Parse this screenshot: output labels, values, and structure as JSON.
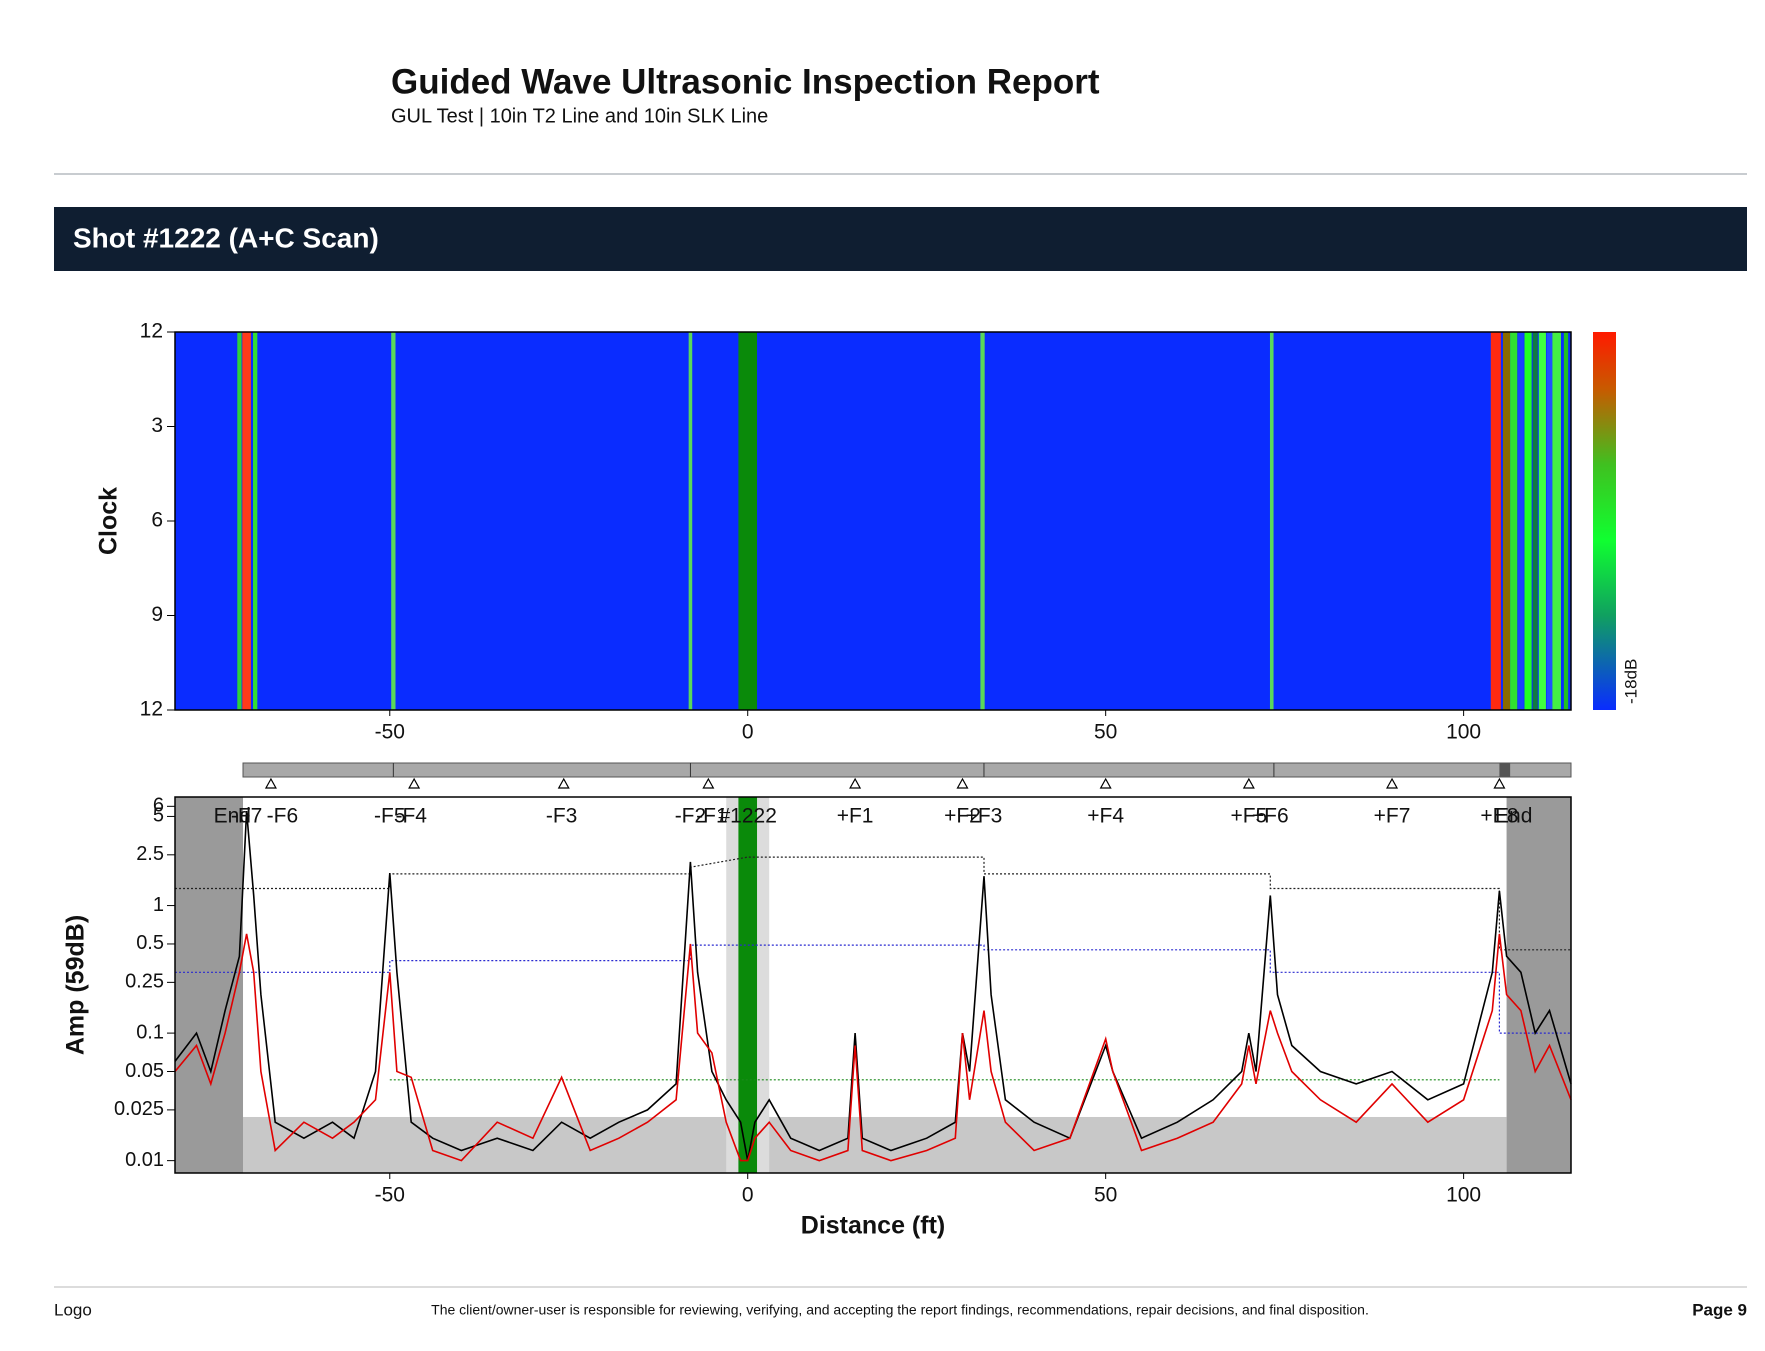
{
  "header": {
    "title": "Guided Wave Ultrasonic Inspection Report",
    "subtitle": "GUL Test | 10in T2 Line and 10in SLK Line"
  },
  "section": {
    "title": "Shot #1222 (A+C Scan)"
  },
  "cscan": {
    "type": "heatmap",
    "ylabel": "Clock",
    "xlim": [
      -80,
      115
    ],
    "xticks": [
      -50,
      0,
      50,
      100
    ],
    "ylim": [
      0,
      12
    ],
    "inverted": true,
    "yticks": [
      {
        "value": 0,
        "label": "12"
      },
      {
        "value": 3,
        "label": "3"
      },
      {
        "value": 6,
        "label": "6"
      },
      {
        "value": 9,
        "label": "9"
      },
      {
        "value": 12,
        "label": "12"
      }
    ],
    "background": "#0a2cff",
    "colorbar_label": "-18dB",
    "stripes": [
      {
        "x": -71,
        "w": 0.6,
        "color": "#2fd13a"
      },
      {
        "x": -70,
        "w": 1.2,
        "color": "#ff3b1a"
      },
      {
        "x": -68.8,
        "w": 0.6,
        "color": "#33dd33"
      },
      {
        "x": -49.5,
        "w": 0.6,
        "color": "#5ad85a"
      },
      {
        "x": -8,
        "w": 0.5,
        "color": "#5ad85a"
      },
      {
        "x": 0,
        "w": 2.6,
        "color": "#0a8a0a"
      },
      {
        "x": 32.8,
        "w": 0.6,
        "color": "#5ad85a"
      },
      {
        "x": 73.2,
        "w": 0.5,
        "color": "#5ad85a"
      },
      {
        "x": 104.5,
        "w": 1.4,
        "color": "#ff2a10"
      },
      {
        "x": 106,
        "w": 1,
        "color": "#8a6a00"
      },
      {
        "x": 107,
        "w": 1,
        "color": "#30e030"
      },
      {
        "x": 108,
        "w": 0.8,
        "color": "#1a40ff"
      },
      {
        "x": 109,
        "w": 1,
        "color": "#22ff22"
      },
      {
        "x": 110,
        "w": 0.7,
        "color": "#107a40"
      },
      {
        "x": 111,
        "w": 1,
        "color": "#40ff40"
      },
      {
        "x": 112,
        "w": 0.8,
        "color": "#2050ff"
      },
      {
        "x": 113,
        "w": 1.2,
        "color": "#44ee44"
      },
      {
        "x": 114.3,
        "w": 0.6,
        "color": "#22c022"
      }
    ]
  },
  "feature_bar": {
    "start": -70.5,
    "dividers": [
      -49.5,
      -8,
      33,
      73.5
    ],
    "dark": [
      105,
      106.5
    ],
    "markers": [
      -66.6,
      -46.6,
      -25.7,
      -5.5,
      15,
      30,
      50,
      70,
      90,
      105
    ]
  },
  "ascan": {
    "type": "line",
    "ylabel": "Amp (59dB)",
    "xlabel": "Distance (ft)",
    "xlim": [
      -80,
      115
    ],
    "xticks": [
      -50,
      0,
      50,
      100
    ],
    "ylim": [
      0.008,
      7.1
    ],
    "log_y": true,
    "yticks": [
      0.01,
      0.025,
      0.05,
      0.1,
      0.25,
      0.5,
      1,
      2.5,
      5,
      6
    ],
    "features": [
      {
        "label": "End",
        "x": -72
      },
      {
        "label": "-F7",
        "x": -70
      },
      {
        "label": "-F6",
        "x": -65
      },
      {
        "label": "-F5",
        "x": -50
      },
      {
        "label": "-F4",
        "x": -47
      },
      {
        "label": "-F3",
        "x": -26
      },
      {
        "label": "-F2",
        "x": -8
      },
      {
        "label": "-F1",
        "x": -5
      },
      {
        "label": "#1222",
        "x": 0
      },
      {
        "label": "+F1",
        "x": 15
      },
      {
        "label": "+F2",
        "x": 30
      },
      {
        "label": "+F3",
        "x": 33
      },
      {
        "label": "+F4",
        "x": 50
      },
      {
        "label": "+F5",
        "x": 70
      },
      {
        "label": "+F6",
        "x": 73
      },
      {
        "label": "+F7",
        "x": 90
      },
      {
        "label": "+E8",
        "x": 105
      },
      {
        "label": "End",
        "x": 107
      }
    ],
    "regions": [
      {
        "x0": -80,
        "x1": -70.5,
        "y0": 0.008,
        "y1": 7.1,
        "color": "#9a9a9a"
      },
      {
        "x0": 106,
        "x1": 115,
        "y0": 0.008,
        "y1": 7.1,
        "color": "#9a9a9a"
      },
      {
        "x0": -70.5,
        "x1": 106,
        "y0": 0.008,
        "y1": 0.022,
        "color": "#c8c8c8"
      },
      {
        "x0": -3,
        "x1": 3,
        "y0": 0.008,
        "y1": 7.1,
        "color": "#dcdcdc"
      },
      {
        "x0": -1.3,
        "x1": 1.3,
        "y0": 0.008,
        "y1": 7.1,
        "color": "#0a8a0a"
      }
    ],
    "reference_lines": [
      {
        "color": "#222",
        "x": [
          -80,
          -50,
          -50,
          -8,
          -8,
          0,
          33,
          33,
          73,
          73,
          105,
          105,
          115
        ],
        "values": [
          1.36,
          1.36,
          1.77,
          1.77,
          2.0,
          2.4,
          2.4,
          1.77,
          1.77,
          1.36,
          1.36,
          0.45,
          0.45
        ]
      },
      {
        "color": "#2a2ad0",
        "x": [
          -80,
          -50,
          -50,
          -8,
          -8,
          33,
          33,
          73,
          73,
          105,
          105,
          115
        ],
        "values": [
          0.3,
          0.3,
          0.37,
          0.37,
          0.49,
          0.49,
          0.45,
          0.45,
          0.3,
          0.3,
          0.1,
          0.1
        ]
      },
      {
        "color": "#1a8a1a",
        "x": [
          -50,
          105
        ],
        "values": [
          0.043,
          0.043
        ]
      }
    ],
    "series": [
      {
        "color": "#000000",
        "x": [
          -80,
          -77,
          -75,
          -73,
          -71,
          -70,
          -69,
          -68,
          -66,
          -62,
          -58,
          -55,
          -52,
          -50,
          -49,
          -47,
          -44,
          -40,
          -35,
          -30,
          -26,
          -22,
          -18,
          -14,
          -10,
          -8,
          -7,
          -5,
          -3,
          -1,
          0,
          1,
          3,
          6,
          10,
          14,
          15,
          16,
          20,
          25,
          29,
          30,
          31,
          33,
          34,
          36,
          40,
          45,
          50,
          51,
          55,
          60,
          65,
          69,
          70,
          71,
          73,
          74,
          76,
          80,
          85,
          90,
          95,
          100,
          104,
          105,
          106,
          108,
          110,
          112,
          115
        ],
        "values": [
          0.06,
          0.1,
          0.05,
          0.15,
          0.4,
          5.5,
          1.2,
          0.2,
          0.02,
          0.015,
          0.02,
          0.015,
          0.05,
          1.8,
          0.3,
          0.02,
          0.015,
          0.012,
          0.015,
          0.012,
          0.02,
          0.015,
          0.02,
          0.025,
          0.04,
          2.2,
          0.3,
          0.05,
          0.03,
          0.02,
          0.01,
          0.02,
          0.03,
          0.015,
          0.012,
          0.015,
          0.1,
          0.015,
          0.012,
          0.015,
          0.02,
          0.1,
          0.05,
          1.7,
          0.2,
          0.03,
          0.02,
          0.015,
          0.08,
          0.05,
          0.015,
          0.02,
          0.03,
          0.05,
          0.1,
          0.05,
          1.2,
          0.2,
          0.08,
          0.05,
          0.04,
          0.05,
          0.03,
          0.04,
          0.3,
          1.3,
          0.4,
          0.3,
          0.1,
          0.15,
          0.04
        ]
      },
      {
        "color": "#e00000",
        "x": [
          -80,
          -77,
          -75,
          -73,
          -71,
          -70,
          -69,
          -68,
          -66,
          -62,
          -58,
          -55,
          -52,
          -50,
          -49,
          -47,
          -44,
          -40,
          -35,
          -30,
          -26,
          -22,
          -18,
          -14,
          -10,
          -8,
          -7,
          -5,
          -3,
          -1,
          0,
          1,
          3,
          6,
          10,
          14,
          15,
          16,
          20,
          25,
          29,
          30,
          31,
          33,
          34,
          36,
          40,
          45,
          50,
          51,
          55,
          60,
          65,
          69,
          70,
          71,
          73,
          74,
          76,
          80,
          85,
          90,
          95,
          100,
          104,
          105,
          106,
          108,
          110,
          112,
          115
        ],
        "values": [
          0.05,
          0.08,
          0.04,
          0.1,
          0.3,
          0.6,
          0.3,
          0.05,
          0.012,
          0.02,
          0.015,
          0.02,
          0.03,
          0.3,
          0.05,
          0.045,
          0.012,
          0.01,
          0.02,
          0.015,
          0.045,
          0.012,
          0.015,
          0.02,
          0.03,
          0.5,
          0.1,
          0.07,
          0.02,
          0.01,
          0.01,
          0.015,
          0.02,
          0.012,
          0.01,
          0.012,
          0.08,
          0.012,
          0.01,
          0.012,
          0.015,
          0.1,
          0.03,
          0.15,
          0.05,
          0.02,
          0.012,
          0.015,
          0.09,
          0.05,
          0.012,
          0.015,
          0.02,
          0.04,
          0.08,
          0.04,
          0.15,
          0.1,
          0.05,
          0.03,
          0.02,
          0.04,
          0.02,
          0.03,
          0.15,
          0.6,
          0.2,
          0.15,
          0.05,
          0.08,
          0.03
        ]
      }
    ]
  },
  "footer": {
    "logo": "Logo",
    "disclaimer": "The client/owner-user is responsible for reviewing, verifying, and accepting the report findings, recommendations, repair decisions, and final disposition.",
    "page": "Page 9"
  }
}
